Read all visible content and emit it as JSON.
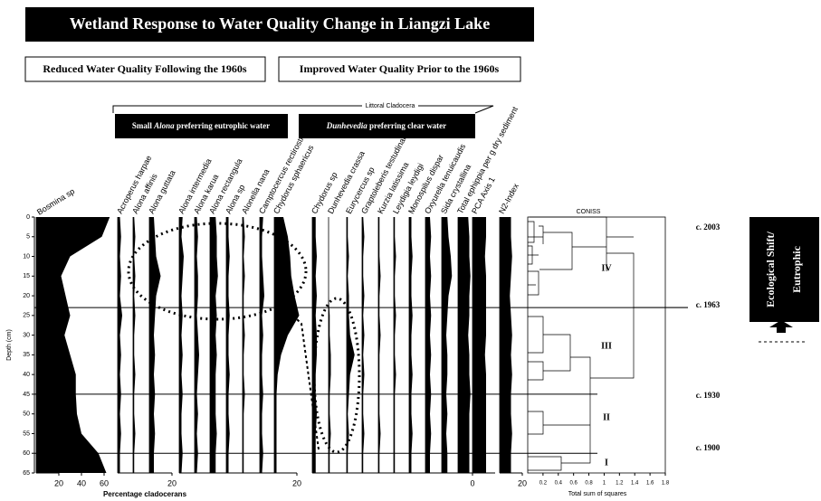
{
  "title": "Wetland Response to Water Quality Change in Liangzi Lake",
  "boxes": [
    "Reduced Water Quality Following the 1960s",
    "Improved Water Quality Prior to the 1960s"
  ],
  "group_label": "Littoral Cladocera",
  "groups": [
    [
      {
        "text": "Small "
      },
      {
        "text": "Alona",
        "italic": true
      },
      {
        "text": " preferring eutrophic water"
      }
    ],
    [
      {
        "text": "Dunhevedia",
        "italic": true
      },
      {
        "text": " preferring clear water"
      }
    ]
  ],
  "chart_data": {
    "type": "stratigraphic",
    "y_label": "Depth (cm)",
    "x_label": "Percentage cladocerans",
    "depths": [
      0,
      5,
      10,
      15,
      20,
      25,
      30,
      35,
      40,
      45,
      50,
      55,
      60,
      65
    ],
    "ylim": [
      0,
      65
    ],
    "color": "#000000",
    "taxa": [
      {
        "name": "Bosmina sp",
        "values": [
          65,
          58,
          30,
          22,
          26,
          30,
          25,
          30,
          35,
          35,
          36,
          40,
          55,
          62
        ],
        "ticks": [
          20,
          40,
          60
        ]
      },
      {
        "name": "Acroperus harpae",
        "values": [
          2,
          3,
          2,
          3,
          2,
          4,
          2,
          3,
          2,
          3,
          2,
          3,
          2,
          2
        ]
      },
      {
        "name": "Alona affinis",
        "values": [
          1,
          2,
          1,
          2,
          1,
          2,
          1,
          1,
          2,
          1,
          1,
          2,
          1,
          1
        ]
      },
      {
        "name": "Alona guttata",
        "values": [
          4,
          5,
          6,
          10,
          6,
          5,
          4,
          5,
          4,
          5,
          4,
          5,
          4,
          4
        ],
        "ticks": [
          20
        ]
      },
      {
        "name": "Alona intermedia",
        "values": [
          3,
          2,
          4,
          3,
          2,
          3,
          2,
          3,
          2,
          3,
          2,
          2,
          3,
          2
        ]
      },
      {
        "name": "Alona karua",
        "values": [
          2,
          3,
          2,
          3,
          3,
          2,
          3,
          4,
          3,
          2,
          3,
          2,
          3,
          2
        ]
      },
      {
        "name": "Alona rectangula",
        "values": [
          5,
          6,
          6,
          7,
          5,
          6,
          5,
          6,
          5,
          5,
          5,
          6,
          5,
          5
        ]
      },
      {
        "name": "Alona sp",
        "values": [
          2,
          2,
          3,
          2,
          2,
          3,
          2,
          2,
          3,
          2,
          2,
          3,
          2,
          2
        ]
      },
      {
        "name": "Alonella nana",
        "values": [
          1,
          2,
          1,
          2,
          1,
          1,
          2,
          1,
          1,
          2,
          1,
          1,
          1,
          1
        ]
      },
      {
        "name": "Camptocercus rectirostris",
        "values": [
          3,
          2,
          2,
          3,
          4,
          2,
          3,
          2,
          2,
          3,
          2,
          2,
          3,
          2
        ]
      },
      {
        "name": "Chydorus sphaericus",
        "values": [
          8,
          12,
          14,
          15,
          18,
          22,
          12,
          6,
          3,
          2,
          2,
          2,
          2,
          2
        ],
        "ticks": [
          20
        ]
      },
      {
        "name": "Chydorus sp",
        "values": [
          3,
          3,
          4,
          3,
          4,
          3,
          4,
          4,
          3,
          3,
          4,
          3,
          3,
          3
        ]
      },
      {
        "name": "Dunhevedia crassa",
        "values": [
          0,
          0,
          0,
          0,
          0,
          1,
          1,
          2,
          2,
          1,
          1,
          2,
          1,
          1
        ]
      },
      {
        "name": "Eurycercus sp",
        "values": [
          1,
          1,
          2,
          1,
          2,
          2,
          3,
          7,
          3,
          2,
          1,
          2,
          1,
          1
        ]
      },
      {
        "name": "Graptoleberis testudinaria",
        "values": [
          1,
          2,
          1,
          1,
          2,
          1,
          2,
          1,
          2,
          1,
          1,
          2,
          1,
          1
        ]
      },
      {
        "name": "Kurzia latissima",
        "values": [
          1,
          1,
          1,
          2,
          1,
          1,
          2,
          1,
          1,
          1,
          1,
          2,
          1,
          1
        ]
      },
      {
        "name": "Leydigia leydigi",
        "values": [
          1,
          1,
          2,
          1,
          1,
          2,
          1,
          1,
          2,
          1,
          1,
          1,
          1,
          1
        ]
      },
      {
        "name": "Monospilus dispar",
        "values": [
          2,
          2,
          3,
          2,
          2,
          3,
          2,
          2,
          3,
          2,
          2,
          3,
          2,
          2
        ]
      },
      {
        "name": "Oxyurella tenuicaudis",
        "values": [
          4,
          5,
          4,
          5,
          4,
          5,
          4,
          5,
          4,
          5,
          4,
          5,
          4,
          4
        ]
      },
      {
        "name": "Sida crystallina",
        "values": [
          5,
          6,
          8,
          9,
          6,
          5,
          4,
          5,
          5,
          4,
          5,
          4,
          5,
          5
        ]
      },
      {
        "name": "Total ephippia per g dry sediment",
        "values": [
          9,
          10,
          10,
          11,
          10,
          10,
          9,
          10,
          10,
          11,
          10,
          10,
          10,
          10
        ]
      },
      {
        "name": "PCA Axis 1",
        "values": [
          12,
          12,
          11,
          12,
          12,
          12,
          12,
          11,
          12,
          12,
          12,
          12,
          12,
          12
        ],
        "ticks": [
          0
        ]
      },
      {
        "name": "N2-Index",
        "values": [
          10,
          10,
          11,
          10,
          9,
          10,
          11,
          10,
          11,
          10,
          10,
          11,
          10,
          10
        ],
        "ticks": [
          20
        ]
      }
    ],
    "zone_boundaries": [
      23,
      45,
      60
    ],
    "zones": [
      "IV",
      "III",
      "II",
      "I"
    ],
    "dates": [
      "c. 2003",
      "c. 1963",
      "c. 1930",
      "c. 1900"
    ],
    "coniss_label": "CONISS",
    "coniss_x_label": "Total sum of squares",
    "coniss_xlim": [
      0,
      1.8
    ],
    "coniss_xticks": [
      0.2,
      0.4,
      0.6,
      0.8,
      1.0,
      1.2,
      1.4,
      1.6,
      1.8
    ]
  },
  "shift_box": [
    "Ecological Shift/",
    "Eutrophic"
  ]
}
